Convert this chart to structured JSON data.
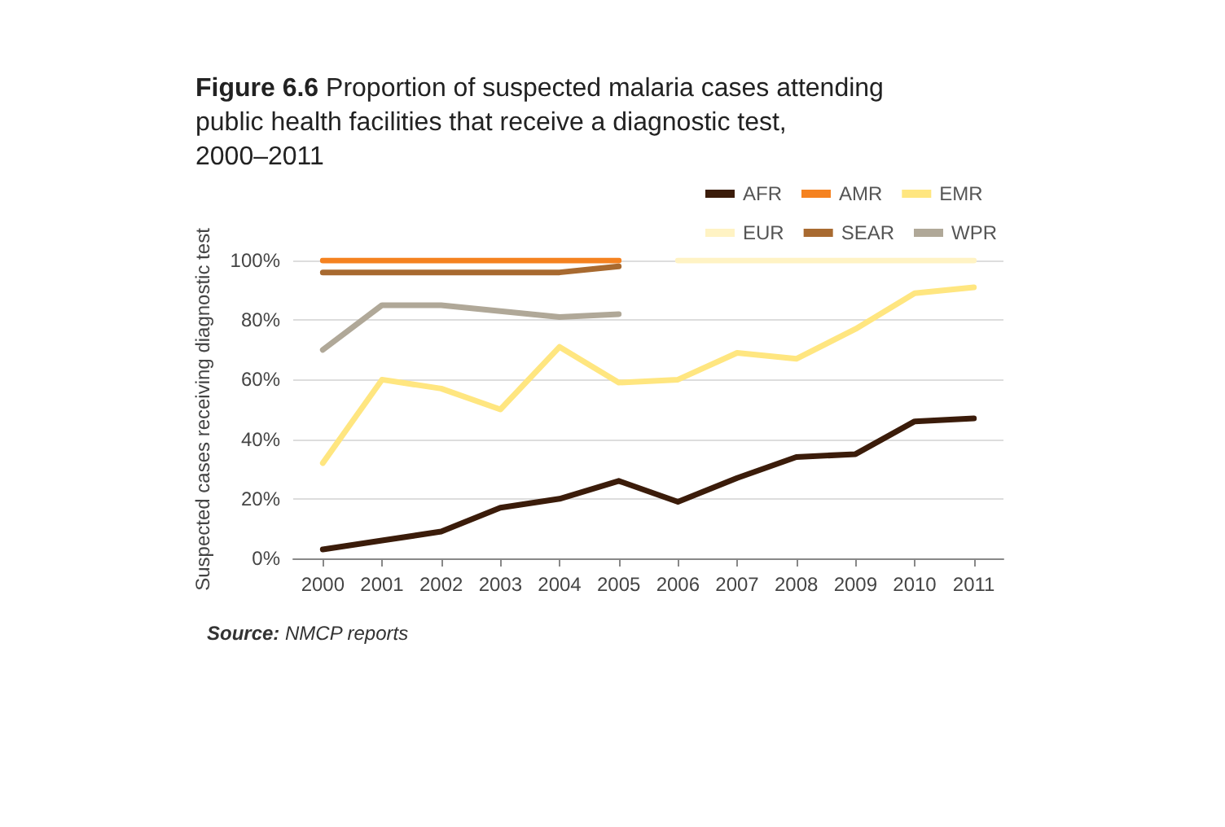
{
  "chart_data": {
    "type": "line",
    "title": "Figure 6.6 Proportion of suspected malaria cases attending public health facilities that receive a diagnostic test, 2000–2011",
    "ylabel": "Suspected cases receiving diagnostic test",
    "annotations": [
      "Source: NMCP reports"
    ],
    "categories": [
      "2000",
      "2001",
      "2002",
      "2003",
      "2004",
      "2005",
      "2006",
      "2007",
      "2008",
      "2009",
      "2010",
      "2011"
    ],
    "series": [
      {
        "name": "AFR",
        "color": "#3b1c0a",
        "values": [
          3,
          6,
          9,
          17,
          20,
          26,
          19,
          27,
          34,
          35,
          46,
          47
        ]
      },
      {
        "name": "AMR",
        "color": "#f58220",
        "values": [
          100,
          100,
          100,
          100,
          100,
          100,
          null,
          null,
          null,
          null,
          null,
          null
        ]
      },
      {
        "name": "EMR",
        "color": "#ffe680",
        "values": [
          32,
          60,
          57,
          50,
          71,
          59,
          60,
          69,
          67,
          77,
          89,
          91
        ]
      },
      {
        "name": "EUR",
        "color": "#fff3c4",
        "values": [
          null,
          null,
          null,
          null,
          null,
          null,
          100,
          100,
          100,
          100,
          100,
          100
        ]
      },
      {
        "name": "SEAR",
        "color": "#a86a30",
        "values": [
          96,
          96,
          96,
          96,
          96,
          98,
          null,
          null,
          null,
          null,
          null,
          null
        ]
      },
      {
        "name": "WPR",
        "color": "#b0a898",
        "values": [
          70,
          85,
          85,
          83,
          81,
          82,
          null,
          null,
          null,
          null,
          null,
          null
        ]
      }
    ],
    "ylim": [
      0,
      100
    ],
    "yticks": [
      {
        "value": 0,
        "label": "0%"
      },
      {
        "value": 20,
        "label": "20%"
      },
      {
        "value": 40,
        "label": "40%"
      },
      {
        "value": 60,
        "label": "60%"
      },
      {
        "value": 80,
        "label": "80%"
      },
      {
        "value": 100,
        "label": "100%"
      }
    ],
    "grid": "y",
    "legend": "top right",
    "marker": "none",
    "line_style": "solid"
  }
}
